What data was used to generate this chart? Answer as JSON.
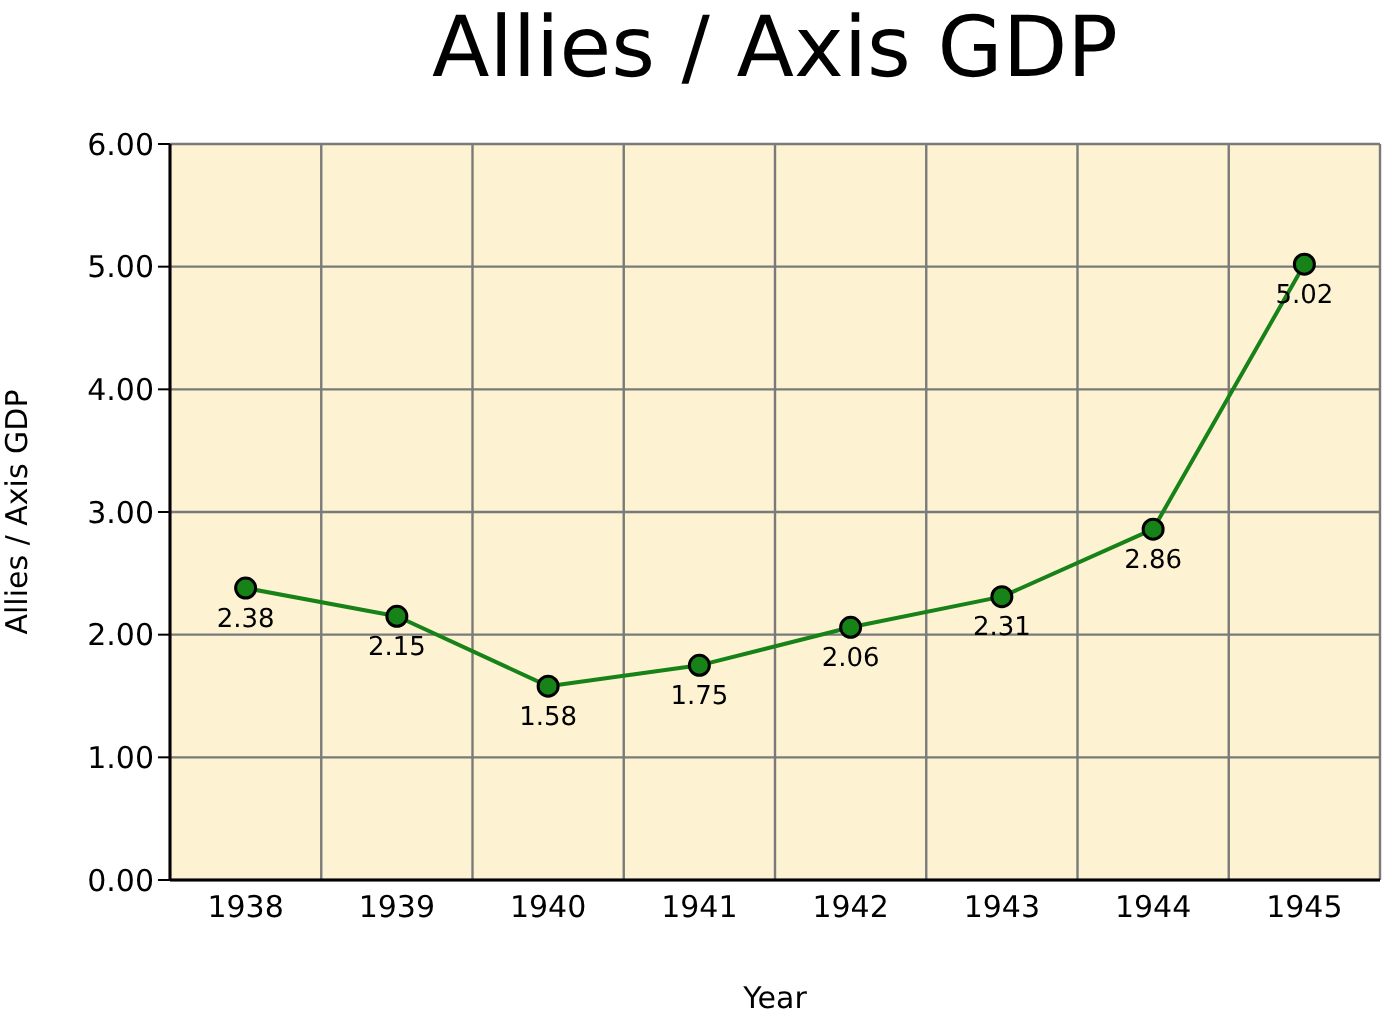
{
  "chart_data": {
    "type": "line",
    "title": "Allies / Axis GDP",
    "xlabel": "Year",
    "ylabel": "Allies / Axis GDP",
    "categories": [
      "1938",
      "1939",
      "1940",
      "1941",
      "1942",
      "1943",
      "1944",
      "1945"
    ],
    "series": [
      {
        "color": "#178217",
        "values": [
          2.38,
          2.15,
          1.58,
          1.75,
          2.06,
          2.31,
          2.86,
          5.02
        ]
      }
    ],
    "ylim": [
      0,
      6
    ],
    "yticks": [
      {
        "value": 0,
        "label": "0.00"
      },
      {
        "value": 1,
        "label": "1.00"
      },
      {
        "value": 2,
        "label": "2.00"
      },
      {
        "value": 3,
        "label": "3.00"
      },
      {
        "value": 4,
        "label": "4.00"
      },
      {
        "value": 5,
        "label": "5.00"
      },
      {
        "value": 6,
        "label": "6.00"
      }
    ],
    "grid": true,
    "marker": "circle",
    "line_style": "solid",
    "data_labels": true
  }
}
